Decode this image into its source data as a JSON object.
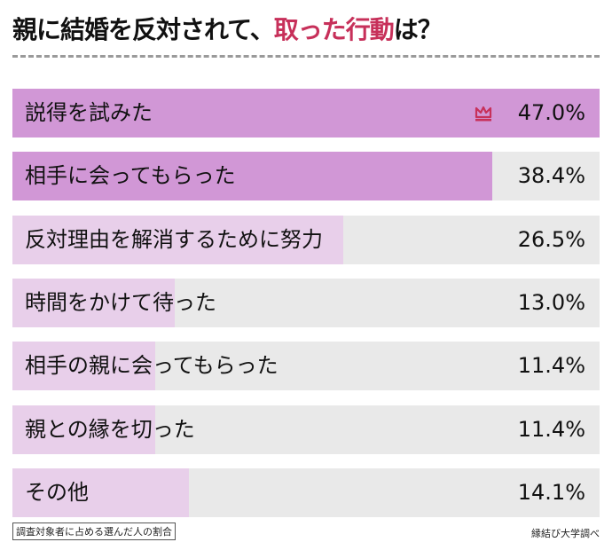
{
  "chart_data": {
    "type": "bar",
    "orientation": "horizontal",
    "title_parts": [
      "親に結婚を反対されて、",
      "取った行動",
      "は？"
    ],
    "categories": [
      "説得を試みた",
      "相手に会ってもらった",
      "反対理由を解消するために努力",
      "時間をかけて待った",
      "相手の親に会ってもらった",
      "親との縁を切った",
      "その他"
    ],
    "values": [
      47.0,
      38.4,
      26.5,
      13.0,
      11.4,
      11.4,
      14.1
    ],
    "value_labels": [
      "47.0%",
      "38.4%",
      "26.5%",
      "13.0%",
      "11.4%",
      "11.4%",
      "14.1%"
    ],
    "unit": "%",
    "xlim": [
      0,
      47.0
    ],
    "top_icon": "crown-icon",
    "note": "調査対象者に占める選んだ人の割合",
    "source": "縁結び大学調べ"
  },
  "colors": {
    "accent": "#c7305a",
    "fill_top": "#d197d6",
    "fill_other": "#e8cfea",
    "track": "#e9e9e9"
  }
}
